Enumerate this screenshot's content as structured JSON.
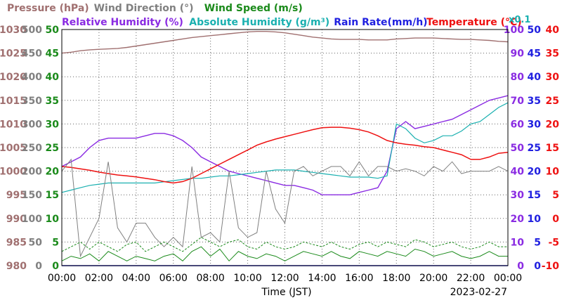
{
  "chart_data": {
    "type": "line",
    "date": "2023-02-27",
    "xlabel": "Time (JST)",
    "x_ticks": [
      "00:00",
      "02:00",
      "04:00",
      "06:00",
      "08:00",
      "10:00",
      "12:00",
      "14:00",
      "16:00",
      "18:00",
      "20:00",
      "22:00",
      "00:00"
    ],
    "x_hours": [
      0,
      0.5,
      1,
      1.5,
      2,
      2.5,
      3,
      3.5,
      4,
      4.5,
      5,
      5.5,
      6,
      6.5,
      7,
      7.5,
      8,
      8.5,
      9,
      9.5,
      10,
      10.5,
      11,
      11.5,
      12,
      12.5,
      13,
      13.5,
      14,
      14.5,
      15,
      15.5,
      16,
      16.5,
      17,
      17.5,
      18,
      18.5,
      19,
      19.5,
      20,
      20.5,
      21,
      21.5,
      22,
      22.5,
      23,
      23.5,
      24
    ],
    "legend_row1": [
      {
        "text": "Pressure (hPa)",
        "color": "#a07070"
      },
      {
        "text": "Wind Direction (°)",
        "color": "#808080"
      },
      {
        "text": "Wind Speed (m/s)",
        "color": "#1a8a1a"
      }
    ],
    "legend_row2": [
      {
        "text": "Relative Humidity (%)",
        "color": "#8a2be2"
      },
      {
        "text": "Absolute Humidity (g/m³)",
        "color": "#1ab0b0"
      },
      {
        "text": "Rain Rate(mm/h)",
        "color": "#2020e0"
      },
      {
        "text": "Temperature (°C)",
        "color": "#ee1111"
      }
    ],
    "axes": {
      "pressure": {
        "ticks": [
          "1030",
          "1025",
          "1020",
          "1015",
          "1010",
          "1005",
          "1000",
          "995",
          "990",
          "985",
          "980"
        ],
        "range": [
          980,
          1030
        ],
        "color": "#a07070"
      },
      "wind_direction": {
        "ticks": [
          "500",
          "450",
          "400",
          "350",
          "300",
          "250",
          "200",
          "150",
          "100",
          "50",
          "0"
        ],
        "range": [
          0,
          500
        ],
        "color": "#808080"
      },
      "wind_speed": {
        "ticks": [
          "50",
          "45",
          "40",
          "35",
          "30",
          "25",
          "20",
          "15",
          "10",
          "5",
          "0"
        ],
        "range": [
          0,
          50
        ],
        "color": "#1a8a1a"
      },
      "relative_humidity": {
        "ticks": [
          "100",
          "90",
          "80",
          "70",
          "60",
          "50",
          "40",
          "30",
          "20",
          "10",
          "0"
        ],
        "range": [
          0,
          100
        ],
        "color": "#8a2be2"
      },
      "rain_rate": {
        "ticks": [
          "50",
          "45",
          "40",
          "35",
          "30",
          "25",
          "20",
          "15",
          "10",
          "5",
          "0"
        ],
        "range": [
          0,
          50
        ],
        "color": "#2020e0"
      },
      "temperature": {
        "ticks": [
          "40",
          "35",
          "30",
          "25",
          "20",
          "15",
          "10",
          "5",
          "0",
          "-5",
          "-10"
        ],
        "range": [
          -10,
          40
        ],
        "color": "#ee1111"
      },
      "abs_humidity_note": "x0.1"
    },
    "series": [
      {
        "name": "Pressure (hPa)",
        "axis": "pressure",
        "color": "#a07070",
        "width": 1.4,
        "values": [
          1025,
          1025.2,
          1025.5,
          1025.7,
          1025.8,
          1025.9,
          1026,
          1026.2,
          1026.5,
          1026.8,
          1027.1,
          1027.4,
          1027.7,
          1028,
          1028.3,
          1028.5,
          1028.7,
          1028.9,
          1029.1,
          1029.3,
          1029.5,
          1029.6,
          1029.6,
          1029.5,
          1029.3,
          1029,
          1028.7,
          1028.4,
          1028.2,
          1028,
          1027.9,
          1027.9,
          1027.9,
          1027.8,
          1027.8,
          1027.8,
          1028,
          1028.1,
          1028.2,
          1028.2,
          1028.2,
          1028.1,
          1028,
          1027.9,
          1027.9,
          1027.8,
          1027.7,
          1027.5,
          1027.4
        ]
      },
      {
        "name": "Relative Humidity (%)",
        "axis": "relative_humidity",
        "color": "#8a2be2",
        "width": 1.4,
        "values": [
          42,
          44,
          46,
          50,
          53,
          54,
          54,
          54,
          54,
          55,
          56,
          56,
          55,
          53,
          50,
          46,
          44,
          42,
          40,
          39,
          38,
          37,
          36,
          35,
          34,
          34,
          33,
          32,
          30,
          30,
          30,
          30,
          31,
          32,
          33,
          40,
          58,
          61,
          58,
          59,
          60,
          61,
          62,
          64,
          66,
          68,
          70,
          71,
          72
        ]
      },
      {
        "name": "Absolute Humidity (g/m³)",
        "axis": "relative_humidity",
        "color": "#1ab0b0",
        "width": 1.2,
        "values": [
          31,
          32,
          33,
          34,
          34.5,
          35,
          35,
          35,
          35,
          35,
          35,
          35.5,
          36,
          36.5,
          37,
          37,
          37.5,
          38,
          38,
          38.5,
          39,
          39.5,
          40,
          40.5,
          40.5,
          40.5,
          40,
          39.5,
          39,
          38.5,
          38,
          37.5,
          37.5,
          37.5,
          37,
          38,
          60,
          58,
          54,
          52,
          53,
          55,
          55,
          57,
          60,
          61,
          64,
          67,
          69
        ]
      },
      {
        "name": "Rain Rate(mm/h)",
        "axis": "rain_rate",
        "color": "#2020e0",
        "width": 1.4,
        "values": [
          0,
          0,
          0,
          0,
          0,
          0,
          0,
          0,
          0,
          0,
          0,
          0,
          0,
          0,
          0,
          0,
          0,
          0,
          0,
          0,
          0,
          0,
          0,
          0,
          0,
          0,
          0,
          0,
          0,
          0,
          0,
          0,
          0,
          0,
          0,
          0,
          0,
          0,
          0,
          0,
          0,
          0,
          0,
          0,
          0,
          0,
          0,
          0,
          0
        ]
      },
      {
        "name": "Temperature (°C)",
        "axis": "temperature",
        "color": "#ee1111",
        "width": 1.5,
        "values": [
          11,
          10.8,
          10.5,
          10.2,
          9.8,
          9.5,
          9.2,
          9,
          8.8,
          8.5,
          8.2,
          7.8,
          7.5,
          7.8,
          8.5,
          9.5,
          10.5,
          11.5,
          12.5,
          13.5,
          14.5,
          15.5,
          16.2,
          16.8,
          17.3,
          17.8,
          18.3,
          18.8,
          19.2,
          19.3,
          19.3,
          19.1,
          18.8,
          18.3,
          17.5,
          16.5,
          16,
          15.7,
          15.5,
          15.2,
          15,
          14.5,
          14,
          13.5,
          12.5,
          12.5,
          13,
          13.8,
          14
        ]
      },
      {
        "name": "Wind Direction (°)",
        "axis": "wind_direction",
        "color": "#808080",
        "width": 1,
        "values": [
          200,
          225,
          20,
          60,
          100,
          220,
          80,
          50,
          90,
          90,
          60,
          40,
          60,
          40,
          210,
          60,
          70,
          50,
          200,
          80,
          60,
          70,
          200,
          120,
          90,
          200,
          210,
          190,
          200,
          210,
          210,
          190,
          220,
          190,
          210,
          210,
          200,
          205,
          200,
          190,
          210,
          200,
          220,
          195,
          200,
          200,
          200,
          210,
          200
        ]
      },
      {
        "name": "Wind Speed (m/s)",
        "axis": "wind_speed",
        "color": "#1a8a1a",
        "width": 1,
        "values": [
          1,
          2,
          1.5,
          2.5,
          1,
          3,
          2,
          1,
          2,
          1.5,
          1,
          2,
          2.5,
          1,
          3,
          4,
          2,
          3.5,
          1,
          3,
          2,
          1.5,
          2.5,
          2,
          1,
          2,
          3,
          2.5,
          2,
          3,
          2,
          1.5,
          3,
          2.5,
          2,
          3,
          2.5,
          2,
          3.5,
          3,
          2,
          2.5,
          3,
          2,
          1.5,
          2,
          3,
          2,
          2
        ]
      },
      {
        "name": "Wind Speed (m/s)",
        "axis": "wind_speed",
        "color": "#1a8a1a",
        "width": 1,
        "dashed": true,
        "values": [
          3,
          4,
          5,
          3.5,
          5,
          4,
          3,
          4.5,
          5,
          3,
          4,
          5,
          4,
          3,
          4.5,
          6,
          5,
          4,
          5,
          5.5,
          4,
          3.5,
          5,
          4,
          3.5,
          4,
          5,
          4.5,
          4,
          5,
          4,
          3.5,
          4.5,
          5,
          4,
          5,
          4.5,
          4,
          5.5,
          5,
          4,
          4.5,
          5,
          4,
          3.5,
          4,
          5,
          4,
          4
        ]
      }
    ],
    "grid": true
  }
}
